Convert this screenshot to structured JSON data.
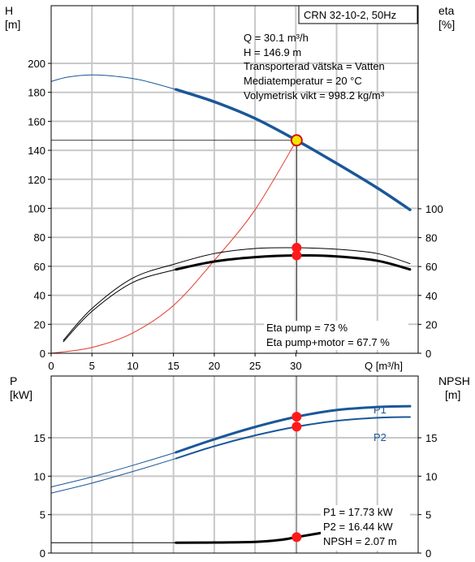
{
  "title_box": "CRN 32-10-2, 50Hz",
  "top_chart": {
    "left_axis": {
      "label": "H",
      "unit": "[m]",
      "ticks": [
        0,
        20,
        40,
        60,
        80,
        100,
        120,
        140,
        160,
        180,
        200
      ]
    },
    "right_axis": {
      "label": "eta",
      "unit": "[%]",
      "ticks": [
        0,
        20,
        40,
        60,
        80,
        100
      ]
    },
    "x_axis": {
      "label": "Q [m³/h]",
      "ticks": [
        0,
        5,
        10,
        15,
        20,
        25,
        30
      ]
    },
    "info_lines": [
      "Q = 30.1 m³/h",
      "H = 146.9 m",
      "Transporterad vätska = Vatten",
      "Mediatemperatur = 20 °C",
      "Volymetrisk vikt = 998.2 kg/m³"
    ],
    "eta_lines": [
      "Eta pump = 73 %",
      "Eta pump+motor = 67.7 %"
    ]
  },
  "bottom_chart": {
    "left_axis": {
      "label": "P",
      "unit": "[kW]",
      "ticks": [
        0,
        5,
        10,
        15
      ]
    },
    "right_axis": {
      "label": "NPSH",
      "unit": "[m]",
      "ticks": [
        0,
        5,
        10,
        15
      ]
    },
    "series_labels": [
      "P1",
      "P2"
    ],
    "info_lines": [
      "P1 = 17.73 kW",
      "P2 = 16.44 kW",
      "NPSH = 2.07 m"
    ]
  },
  "colors": {
    "head": "#1a5799",
    "power": "#1a5799",
    "system": "#e3382a",
    "marker": "#ff1a1a",
    "duty": "#f2e600",
    "grid": "#c8c8c8"
  },
  "chart_data": [
    {
      "type": "line",
      "xlabel": "Q [m³/h]",
      "ylabel": "H [m]",
      "y2label": "eta [%]",
      "xlim": [
        0,
        45
      ],
      "ylim": [
        0,
        200
      ],
      "y2lim": [
        0,
        100
      ],
      "grid": true,
      "duty_point": {
        "x": 30.1,
        "y": 146.9
      },
      "series": [
        {
          "axis": "left",
          "color": "#1a5799",
          "width": 1,
          "x": [
            0,
            2,
            5,
            8,
            11,
            15.3
          ],
          "y": [
            187.5,
            190.5,
            192,
            191,
            188.5,
            182
          ]
        },
        {
          "axis": "left",
          "color": "#1a5799",
          "width": 3.5,
          "x": [
            15.3,
            20,
            25,
            30.1,
            35,
            40,
            44
          ],
          "y": [
            182,
            173.5,
            162,
            146.9,
            131,
            114,
            99
          ]
        },
        {
          "axis": "left",
          "color": "#e3382a",
          "width": 1,
          "x": [
            0,
            5,
            10,
            15,
            20,
            25,
            30.1
          ],
          "y": [
            0,
            4,
            14,
            33,
            64,
            99,
            146.9
          ]
        },
        {
          "axis": "right",
          "color": "#000000",
          "width": 1,
          "x": [
            1.5,
            5,
            10,
            15.3,
            20,
            25,
            30,
            35,
            40,
            44
          ],
          "y": [
            9,
            31,
            52,
            62,
            69,
            72.5,
            73,
            72,
            69,
            62
          ]
        },
        {
          "axis": "right",
          "color": "#000000",
          "width": 1,
          "x": [
            1.5,
            5,
            10,
            15.3
          ],
          "y": [
            8,
            29,
            49,
            58
          ]
        },
        {
          "axis": "right",
          "color": "#000000",
          "width": 3,
          "x": [
            15.3,
            20,
            25,
            30,
            35,
            40,
            44
          ],
          "y": [
            58,
            63.5,
            66.5,
            67.7,
            67,
            64,
            58
          ]
        }
      ],
      "points": [
        {
          "x": 30.1,
          "axis": "right",
          "y": 73
        },
        {
          "x": 30.1,
          "axis": "right",
          "y": 67.7
        }
      ]
    },
    {
      "type": "line",
      "xlabel": "",
      "ylabel": "P [kW]",
      "y2label": "NPSH [m]",
      "xlim": [
        0,
        45
      ],
      "ylim": [
        0,
        20
      ],
      "y2lim": [
        0,
        20
      ],
      "grid": true,
      "series": [
        {
          "name": "P1",
          "axis": "left",
          "color": "#1a5799",
          "width": 1,
          "x": [
            0,
            5,
            10,
            15.3
          ],
          "y": [
            8.6,
            9.9,
            11.4,
            13.1
          ]
        },
        {
          "name": "P1",
          "axis": "left",
          "color": "#1a5799",
          "width": 3,
          "x": [
            15.3,
            20,
            25,
            30.1,
            35,
            40,
            44
          ],
          "y": [
            13.1,
            14.8,
            16.4,
            17.73,
            18.6,
            19.0,
            19.1
          ]
        },
        {
          "name": "P2",
          "axis": "left",
          "color": "#1a5799",
          "width": 1,
          "x": [
            0,
            5,
            10,
            15.3
          ],
          "y": [
            7.8,
            9.1,
            10.6,
            12.3
          ]
        },
        {
          "name": "P2",
          "axis": "left",
          "color": "#1a5799",
          "width": 2,
          "x": [
            15.3,
            20,
            25,
            30.1,
            35,
            40,
            44
          ],
          "y": [
            12.3,
            13.9,
            15.3,
            16.44,
            17.2,
            17.6,
            17.7
          ]
        },
        {
          "name": "NPSH",
          "axis": "right",
          "color": "#000000",
          "width": 1,
          "x": [
            0,
            15.3
          ],
          "y": [
            1.35,
            1.35
          ]
        },
        {
          "name": "NPSH",
          "axis": "right",
          "color": "#000000",
          "width": 3,
          "x": [
            15.3,
            20,
            25,
            28,
            30.1,
            33,
            36
          ],
          "y": [
            1.35,
            1.37,
            1.45,
            1.7,
            2.07,
            2.6,
            3.1
          ]
        }
      ],
      "points": [
        {
          "x": 30.1,
          "axis": "left",
          "y": 17.73
        },
        {
          "x": 30.1,
          "axis": "left",
          "y": 16.44
        },
        {
          "x": 30.1,
          "axis": "right",
          "y": 2.07
        }
      ]
    }
  ]
}
